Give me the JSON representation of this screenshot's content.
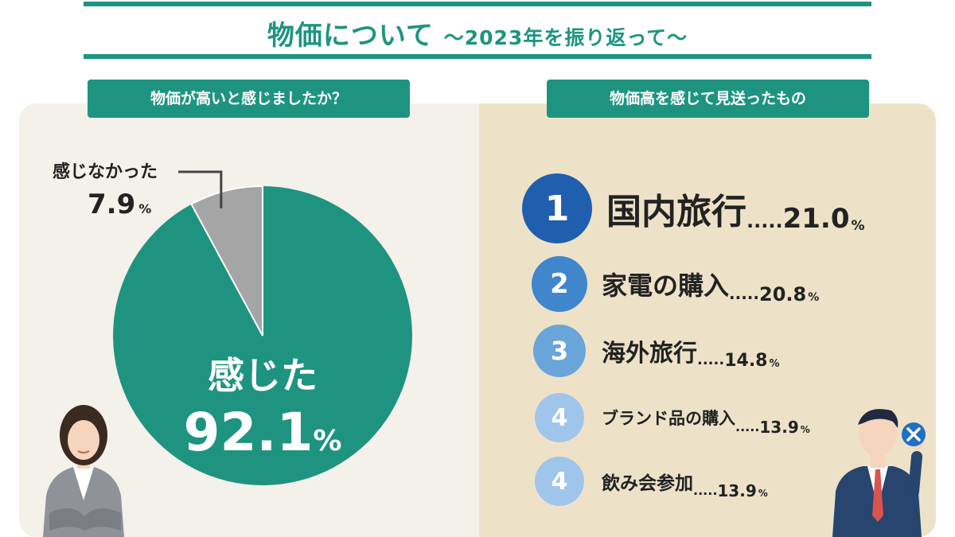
{
  "header": {
    "title_main": "物価について",
    "title_sub": "〜2023年を振り返って〜"
  },
  "left_panel": {
    "label": "物価が高いと感じましたか？"
  },
  "right_panel": {
    "label": "物価高を感じて見送ったもの"
  },
  "colors": {
    "teal": "#1e9480",
    "gray_slice": "#a5a5a5",
    "rank_1": "#1f5fae",
    "rank_2": "#3f86cc",
    "rank_3": "#6aa5da",
    "rank_4": "#9fc6ea"
  },
  "chart_data": [
    {
      "type": "pie",
      "title": "物価が高いと感じましたか？",
      "slices": [
        {
          "label": "感じた",
          "value": 92.1,
          "unit": "%"
        },
        {
          "label": "感じなかった",
          "value": 7.9,
          "unit": "%"
        }
      ]
    },
    {
      "type": "table",
      "title": "物価高を感じて見送ったもの",
      "rows": [
        {
          "rank": "1",
          "label": "国内旅行",
          "value": "21.0",
          "unit": "%"
        },
        {
          "rank": "2",
          "label": "家電の購入",
          "value": "20.8",
          "unit": "%"
        },
        {
          "rank": "3",
          "label": "海外旅行",
          "value": "14.8",
          "unit": "%"
        },
        {
          "rank": "4",
          "label": "ブランド品の購入",
          "value": "13.9",
          "unit": "%"
        },
        {
          "rank": "4",
          "label": "飲み会参加",
          "value": "13.9",
          "unit": "%"
        }
      ]
    }
  ]
}
